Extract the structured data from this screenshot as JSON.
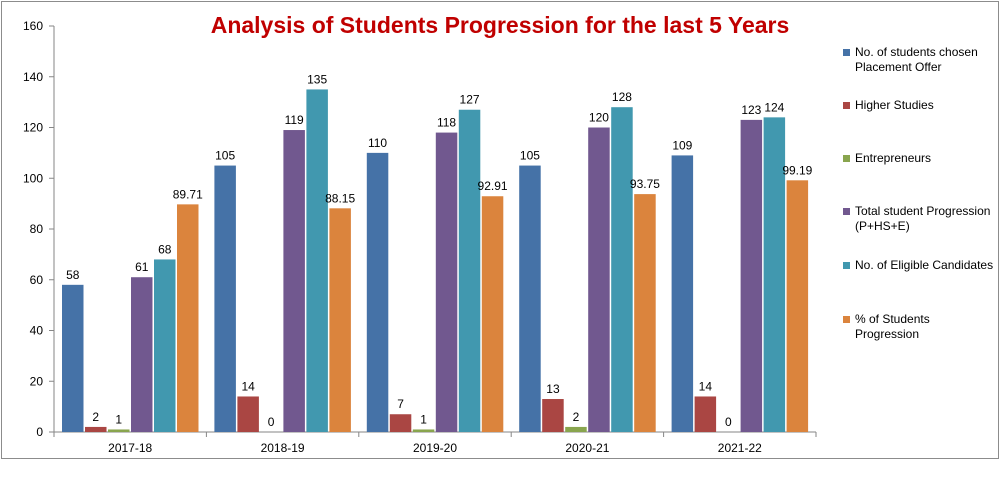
{
  "chart_data": {
    "type": "bar",
    "title": "Analysis of Students Progression for the last 5 Years",
    "categories": [
      "2017-18",
      "2018-19",
      "2019-20",
      "2020-21",
      "2021-22"
    ],
    "ylim": [
      0,
      160
    ],
    "yticks": [
      0,
      20,
      40,
      60,
      80,
      100,
      120,
      140,
      160
    ],
    "grid": false,
    "legend_position": "right",
    "series": [
      {
        "name": "No. of students chosen Placement Offer",
        "color": "#4572a7",
        "values": [
          58,
          105,
          110,
          105,
          109
        ],
        "labels": [
          "58",
          "105",
          "110",
          "105",
          "109"
        ]
      },
      {
        "name": "Higher Studies",
        "color": "#aa4643",
        "values": [
          2,
          14,
          7,
          13,
          14
        ],
        "labels": [
          "2",
          "14",
          "7",
          "13",
          "14"
        ]
      },
      {
        "name": "Entrepreneurs",
        "color": "#89a54e",
        "values": [
          1,
          0,
          1,
          2,
          0
        ],
        "labels": [
          "1",
          "0",
          "1",
          "2",
          "0"
        ]
      },
      {
        "name": "Total student Progression (P+HS+E)",
        "color": "#71588f",
        "values": [
          61,
          119,
          118,
          120,
          123
        ],
        "labels": [
          "61",
          "119",
          "118",
          "120",
          "123"
        ]
      },
      {
        "name": "No. of Eligible Candidates",
        "color": "#4198af",
        "values": [
          68,
          135,
          127,
          128,
          124
        ],
        "labels": [
          "68",
          "135",
          "127",
          "128",
          "124"
        ]
      },
      {
        "name": "% of Students Progression",
        "color": "#db843d",
        "values": [
          89.71,
          88.15,
          92.91,
          93.75,
          99.19
        ],
        "labels": [
          "89.71",
          "88.15",
          "92.91",
          "93.75",
          "99.19"
        ]
      }
    ]
  }
}
